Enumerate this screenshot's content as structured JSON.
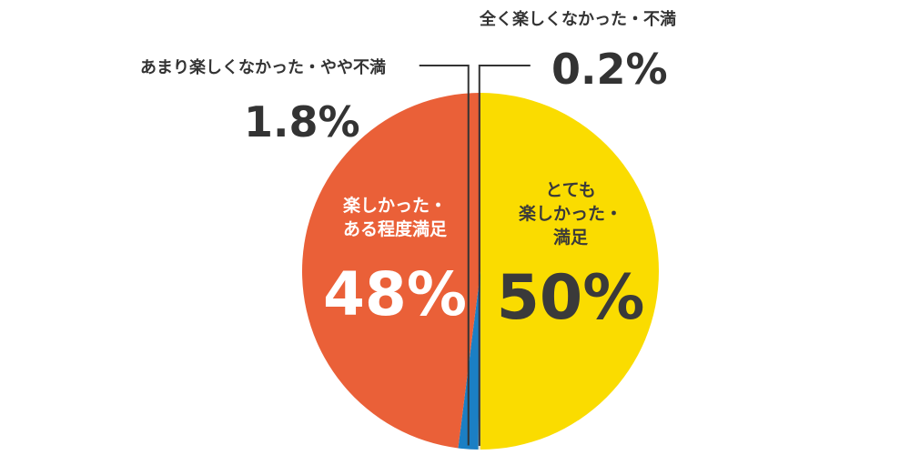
{
  "chart_data": {
    "type": "pie",
    "slices": [
      {
        "label_lines": [
          "とても",
          "楽しかった・",
          "満足"
        ],
        "value": 50,
        "display": "50%",
        "color": "#FADC00"
      },
      {
        "label_lines": [
          "全く楽しくなかった・不満"
        ],
        "value": 0.2,
        "display": "0.2%",
        "color": "#E8E3D2"
      },
      {
        "label_lines": [
          "あまり楽しくなかった・やや不満"
        ],
        "value": 1.8,
        "display": "1.8%",
        "color": "#1B7FC4"
      },
      {
        "label_lines": [
          "楽しかった・",
          "ある程度満足"
        ],
        "value": 48,
        "display": "48%",
        "color": "#EA6038"
      }
    ]
  }
}
